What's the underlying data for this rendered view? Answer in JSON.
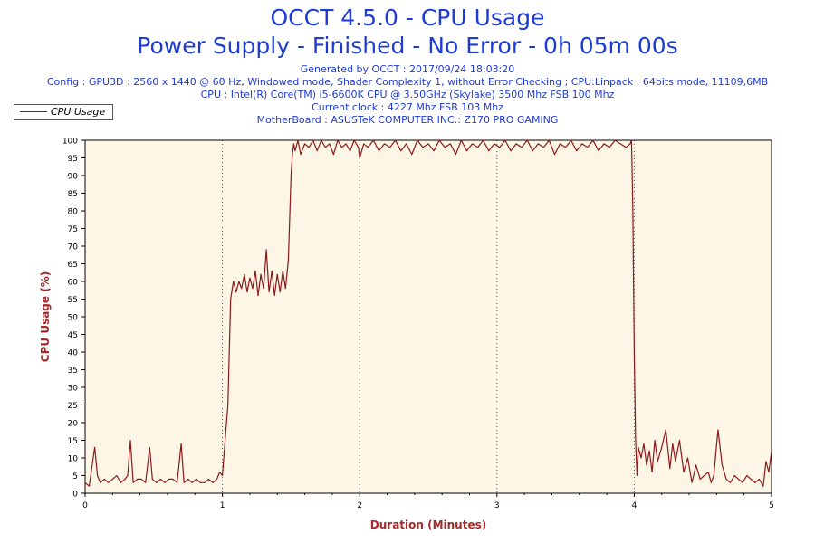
{
  "header": {
    "title": "OCCT 4.5.0 - CPU Usage",
    "subtitle": "Power Supply - Finished - No Error - 0h 05m 00s",
    "info_lines": [
      "Generated by OCCT : 2017/09/24 18:03:20",
      "Config : GPU3D : 2560 x 1440 @ 60 Hz, Windowed mode, Shader Complexity 1, without Error Checking ; CPU:Linpack : 64bits mode, 11109,6MB",
      "CPU : Intel(R) Core(TM) i5-6600K CPU @ 3.50GHz (Skylake) 3500 Mhz FSB 100 Mhz",
      "Current clock : 4227 Mhz FSB 103 Mhz",
      "MotherBoard : ASUSTeK COMPUTER INC.: Z170 PRO GAMING"
    ]
  },
  "legend": {
    "label": "CPU Usage",
    "color": "#8b1a1a"
  },
  "colors": {
    "plot_background": "#fdf5e6",
    "line": "#8b1a1a",
    "axis_title": "#a52a2a",
    "title": "#1f3bd6"
  },
  "chart_data": {
    "type": "line",
    "xlabel": "Duration (Minutes)",
    "ylabel": "CPU Usage (%)",
    "xlim": [
      0,
      5
    ],
    "ylim": [
      0,
      100
    ],
    "xticks": [
      0,
      1,
      2,
      3,
      4,
      5
    ],
    "yticks": [
      0,
      5,
      10,
      15,
      20,
      25,
      30,
      35,
      40,
      45,
      50,
      55,
      60,
      65,
      70,
      75,
      80,
      85,
      90,
      95,
      100
    ],
    "grid": "vertical dotted at minute marks",
    "legend_position": "top-left",
    "series": [
      {
        "name": "CPU Usage",
        "x": [
          0,
          0.03,
          0.07,
          0.09,
          0.11,
          0.14,
          0.17,
          0.2,
          0.23,
          0.26,
          0.29,
          0.31,
          0.33,
          0.35,
          0.38,
          0.41,
          0.44,
          0.47,
          0.49,
          0.52,
          0.55,
          0.58,
          0.61,
          0.64,
          0.67,
          0.7,
          0.72,
          0.75,
          0.78,
          0.81,
          0.84,
          0.87,
          0.9,
          0.93,
          0.96,
          0.98,
          1.0,
          1.02,
          1.04,
          1.06,
          1.08,
          1.1,
          1.12,
          1.14,
          1.16,
          1.18,
          1.2,
          1.22,
          1.24,
          1.26,
          1.28,
          1.3,
          1.32,
          1.34,
          1.36,
          1.38,
          1.4,
          1.42,
          1.44,
          1.46,
          1.48,
          1.5,
          1.51,
          1.52,
          1.53,
          1.55,
          1.57,
          1.6,
          1.63,
          1.66,
          1.69,
          1.72,
          1.75,
          1.78,
          1.81,
          1.84,
          1.87,
          1.9,
          1.93,
          1.96,
          1.99,
          2.0,
          2.03,
          2.06,
          2.1,
          2.14,
          2.18,
          2.22,
          2.26,
          2.3,
          2.34,
          2.38,
          2.42,
          2.46,
          2.5,
          2.54,
          2.58,
          2.62,
          2.66,
          2.7,
          2.74,
          2.78,
          2.82,
          2.86,
          2.9,
          2.94,
          2.98,
          3.02,
          3.06,
          3.1,
          3.14,
          3.18,
          3.22,
          3.26,
          3.3,
          3.34,
          3.38,
          3.42,
          3.46,
          3.5,
          3.54,
          3.58,
          3.62,
          3.66,
          3.7,
          3.74,
          3.78,
          3.82,
          3.86,
          3.9,
          3.94,
          3.97,
          3.98,
          3.99,
          4.0,
          4.01,
          4.02,
          4.03,
          4.05,
          4.07,
          4.09,
          4.11,
          4.13,
          4.15,
          4.17,
          4.2,
          4.23,
          4.26,
          4.28,
          4.3,
          4.33,
          4.36,
          4.39,
          4.42,
          4.45,
          4.48,
          4.51,
          4.54,
          4.56,
          4.58,
          4.61,
          4.64,
          4.67,
          4.7,
          4.73,
          4.76,
          4.79,
          4.82,
          4.85,
          4.88,
          4.91,
          4.94,
          4.96,
          4.98,
          5.0
        ],
        "values": [
          3,
          2,
          13,
          5,
          3,
          4,
          3,
          4,
          5,
          3,
          4,
          5,
          15,
          3,
          4,
          4,
          3,
          13,
          4,
          3,
          4,
          3,
          4,
          4,
          3,
          14,
          3,
          4,
          3,
          4,
          3,
          3,
          4,
          3,
          4,
          6,
          5,
          15,
          25,
          55,
          60,
          57,
          60,
          58,
          62,
          57,
          61,
          58,
          63,
          56,
          62,
          58,
          69,
          57,
          63,
          56,
          62,
          57,
          63,
          58,
          66,
          90,
          96,
          99,
          97,
          100,
          96,
          99,
          98,
          100,
          97,
          100,
          98,
          99,
          96,
          100,
          98,
          99,
          97,
          100,
          98,
          95,
          99,
          98,
          100,
          97,
          99,
          98,
          100,
          97,
          99,
          96,
          100,
          98,
          99,
          97,
          100,
          98,
          99,
          96,
          100,
          97,
          99,
          98,
          100,
          97,
          99,
          98,
          100,
          97,
          99,
          98,
          100,
          97,
          99,
          98,
          100,
          96,
          99,
          98,
          100,
          97,
          99,
          98,
          100,
          97,
          99,
          98,
          100,
          99,
          98,
          99,
          100,
          80,
          40,
          15,
          5,
          13,
          10,
          14,
          8,
          12,
          6,
          15,
          9,
          13,
          18,
          7,
          14,
          9,
          15,
          6,
          10,
          3,
          8,
          4,
          5,
          6,
          3,
          5,
          18,
          8,
          4,
          3,
          5,
          4,
          3,
          5,
          4,
          3,
          4,
          2,
          9,
          6,
          12
        ]
      }
    ]
  }
}
